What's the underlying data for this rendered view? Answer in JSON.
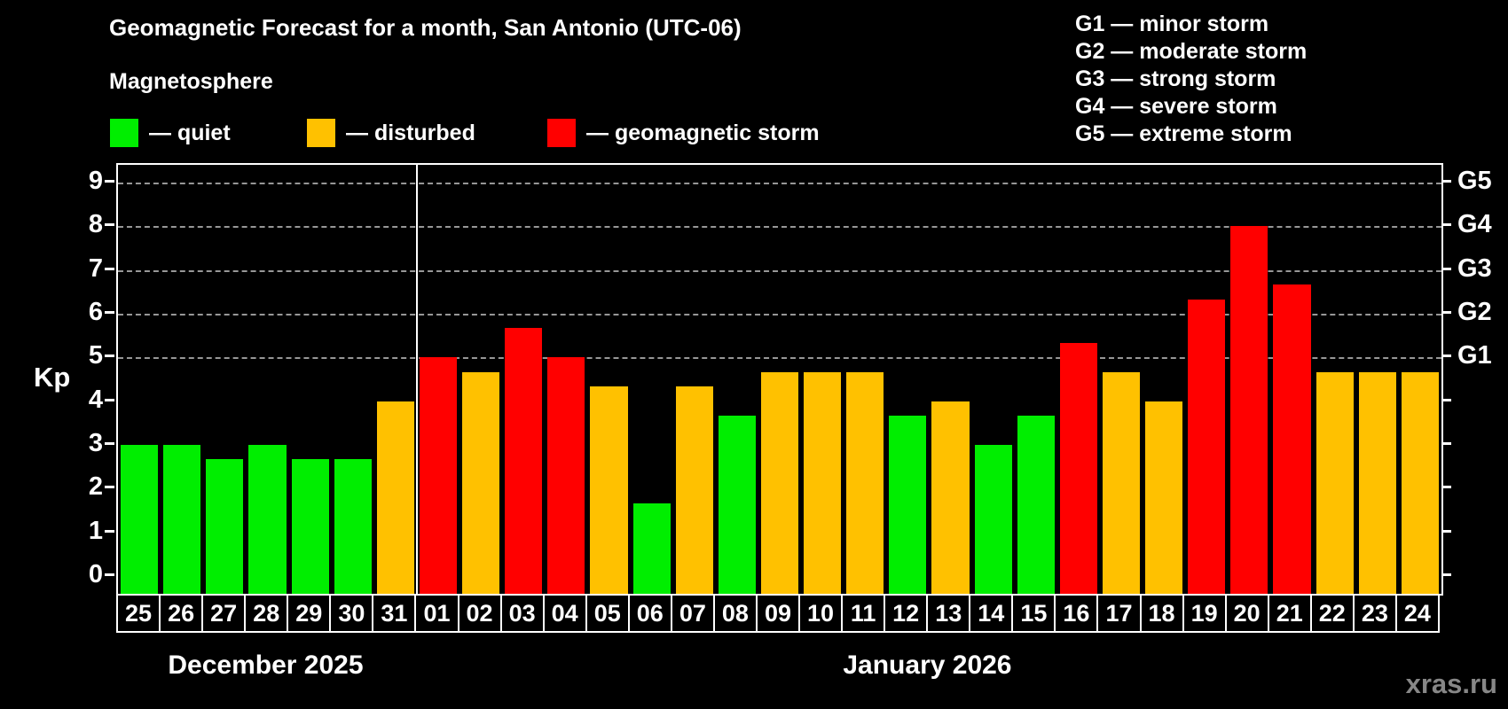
{
  "page": {
    "background": "#000000",
    "watermark": "xras.ru"
  },
  "header": {
    "title": "Geomagnetic Forecast for a month, San Antonio (UTC-06)",
    "subtitle": "Magnetosphere"
  },
  "legend": {
    "items": [
      {
        "name": "quiet",
        "label": "— quiet",
        "color": "#00ee00"
      },
      {
        "name": "disturbed",
        "label": "— disturbed",
        "color": "#ffc100"
      },
      {
        "name": "storm",
        "label": "— geomagnetic storm",
        "color": "#ff0000"
      }
    ]
  },
  "g_legend": {
    "lines": [
      "G1 — minor storm",
      "G2 — moderate storm",
      "G3 — strong storm",
      "G4 — severe storm",
      "G5 — extreme storm"
    ]
  },
  "chart_data": {
    "type": "bar",
    "title": "Geomagnetic Forecast for a month, San Antonio (UTC-06)",
    "ylabel": "Kp",
    "ylim": [
      0,
      9
    ],
    "yticks": [
      0,
      1,
      2,
      3,
      4,
      5,
      6,
      7,
      8,
      9
    ],
    "gridlines_at_kp": [
      5,
      6,
      7,
      8,
      9
    ],
    "grid_style": "dashed horizontal only at Kp 5–9",
    "right_axis_labels": [
      {
        "kp": 5,
        "label": "G1"
      },
      {
        "kp": 6,
        "label": "G2"
      },
      {
        "kp": 7,
        "label": "G3"
      },
      {
        "kp": 8,
        "label": "G4"
      },
      {
        "kp": 9,
        "label": "G5"
      }
    ],
    "colors": {
      "quiet": "#00ee00",
      "disturbed": "#ffc100",
      "storm": "#ff0000"
    },
    "months": [
      {
        "label": "December 2025",
        "days": 7
      },
      {
        "label": "January 2026",
        "days": 24
      }
    ],
    "days": [
      {
        "label": "25",
        "kp": 3,
        "status": "quiet"
      },
      {
        "label": "26",
        "kp": 3,
        "status": "quiet"
      },
      {
        "label": "27",
        "kp": 2.67,
        "status": "quiet"
      },
      {
        "label": "28",
        "kp": 3,
        "status": "quiet"
      },
      {
        "label": "29",
        "kp": 2.67,
        "status": "quiet"
      },
      {
        "label": "30",
        "kp": 2.67,
        "status": "quiet"
      },
      {
        "label": "31",
        "kp": 4,
        "status": "disturbed"
      },
      {
        "label": "01",
        "kp": 5,
        "status": "storm"
      },
      {
        "label": "02",
        "kp": 4.67,
        "status": "disturbed"
      },
      {
        "label": "03",
        "kp": 5.67,
        "status": "storm"
      },
      {
        "label": "04",
        "kp": 5,
        "status": "storm"
      },
      {
        "label": "05",
        "kp": 4.33,
        "status": "disturbed"
      },
      {
        "label": "06",
        "kp": 1.67,
        "status": "quiet"
      },
      {
        "label": "07",
        "kp": 4.33,
        "status": "disturbed"
      },
      {
        "label": "08",
        "kp": 3.67,
        "status": "quiet"
      },
      {
        "label": "09",
        "kp": 4.67,
        "status": "disturbed"
      },
      {
        "label": "10",
        "kp": 4.67,
        "status": "disturbed"
      },
      {
        "label": "11",
        "kp": 4.67,
        "status": "disturbed"
      },
      {
        "label": "12",
        "kp": 3.67,
        "status": "quiet"
      },
      {
        "label": "13",
        "kp": 4,
        "status": "disturbed"
      },
      {
        "label": "14",
        "kp": 3,
        "status": "quiet"
      },
      {
        "label": "15",
        "kp": 3.67,
        "status": "quiet"
      },
      {
        "label": "16",
        "kp": 5.33,
        "status": "storm"
      },
      {
        "label": "17",
        "kp": 4.67,
        "status": "disturbed"
      },
      {
        "label": "18",
        "kp": 4,
        "status": "disturbed"
      },
      {
        "label": "19",
        "kp": 6.33,
        "status": "storm"
      },
      {
        "label": "20",
        "kp": 8,
        "status": "storm"
      },
      {
        "label": "21",
        "kp": 6.67,
        "status": "storm"
      },
      {
        "label": "22",
        "kp": 4.67,
        "status": "disturbed"
      },
      {
        "label": "23",
        "kp": 4.67,
        "status": "disturbed"
      },
      {
        "label": "24",
        "kp": 4.67,
        "status": "disturbed"
      }
    ]
  }
}
